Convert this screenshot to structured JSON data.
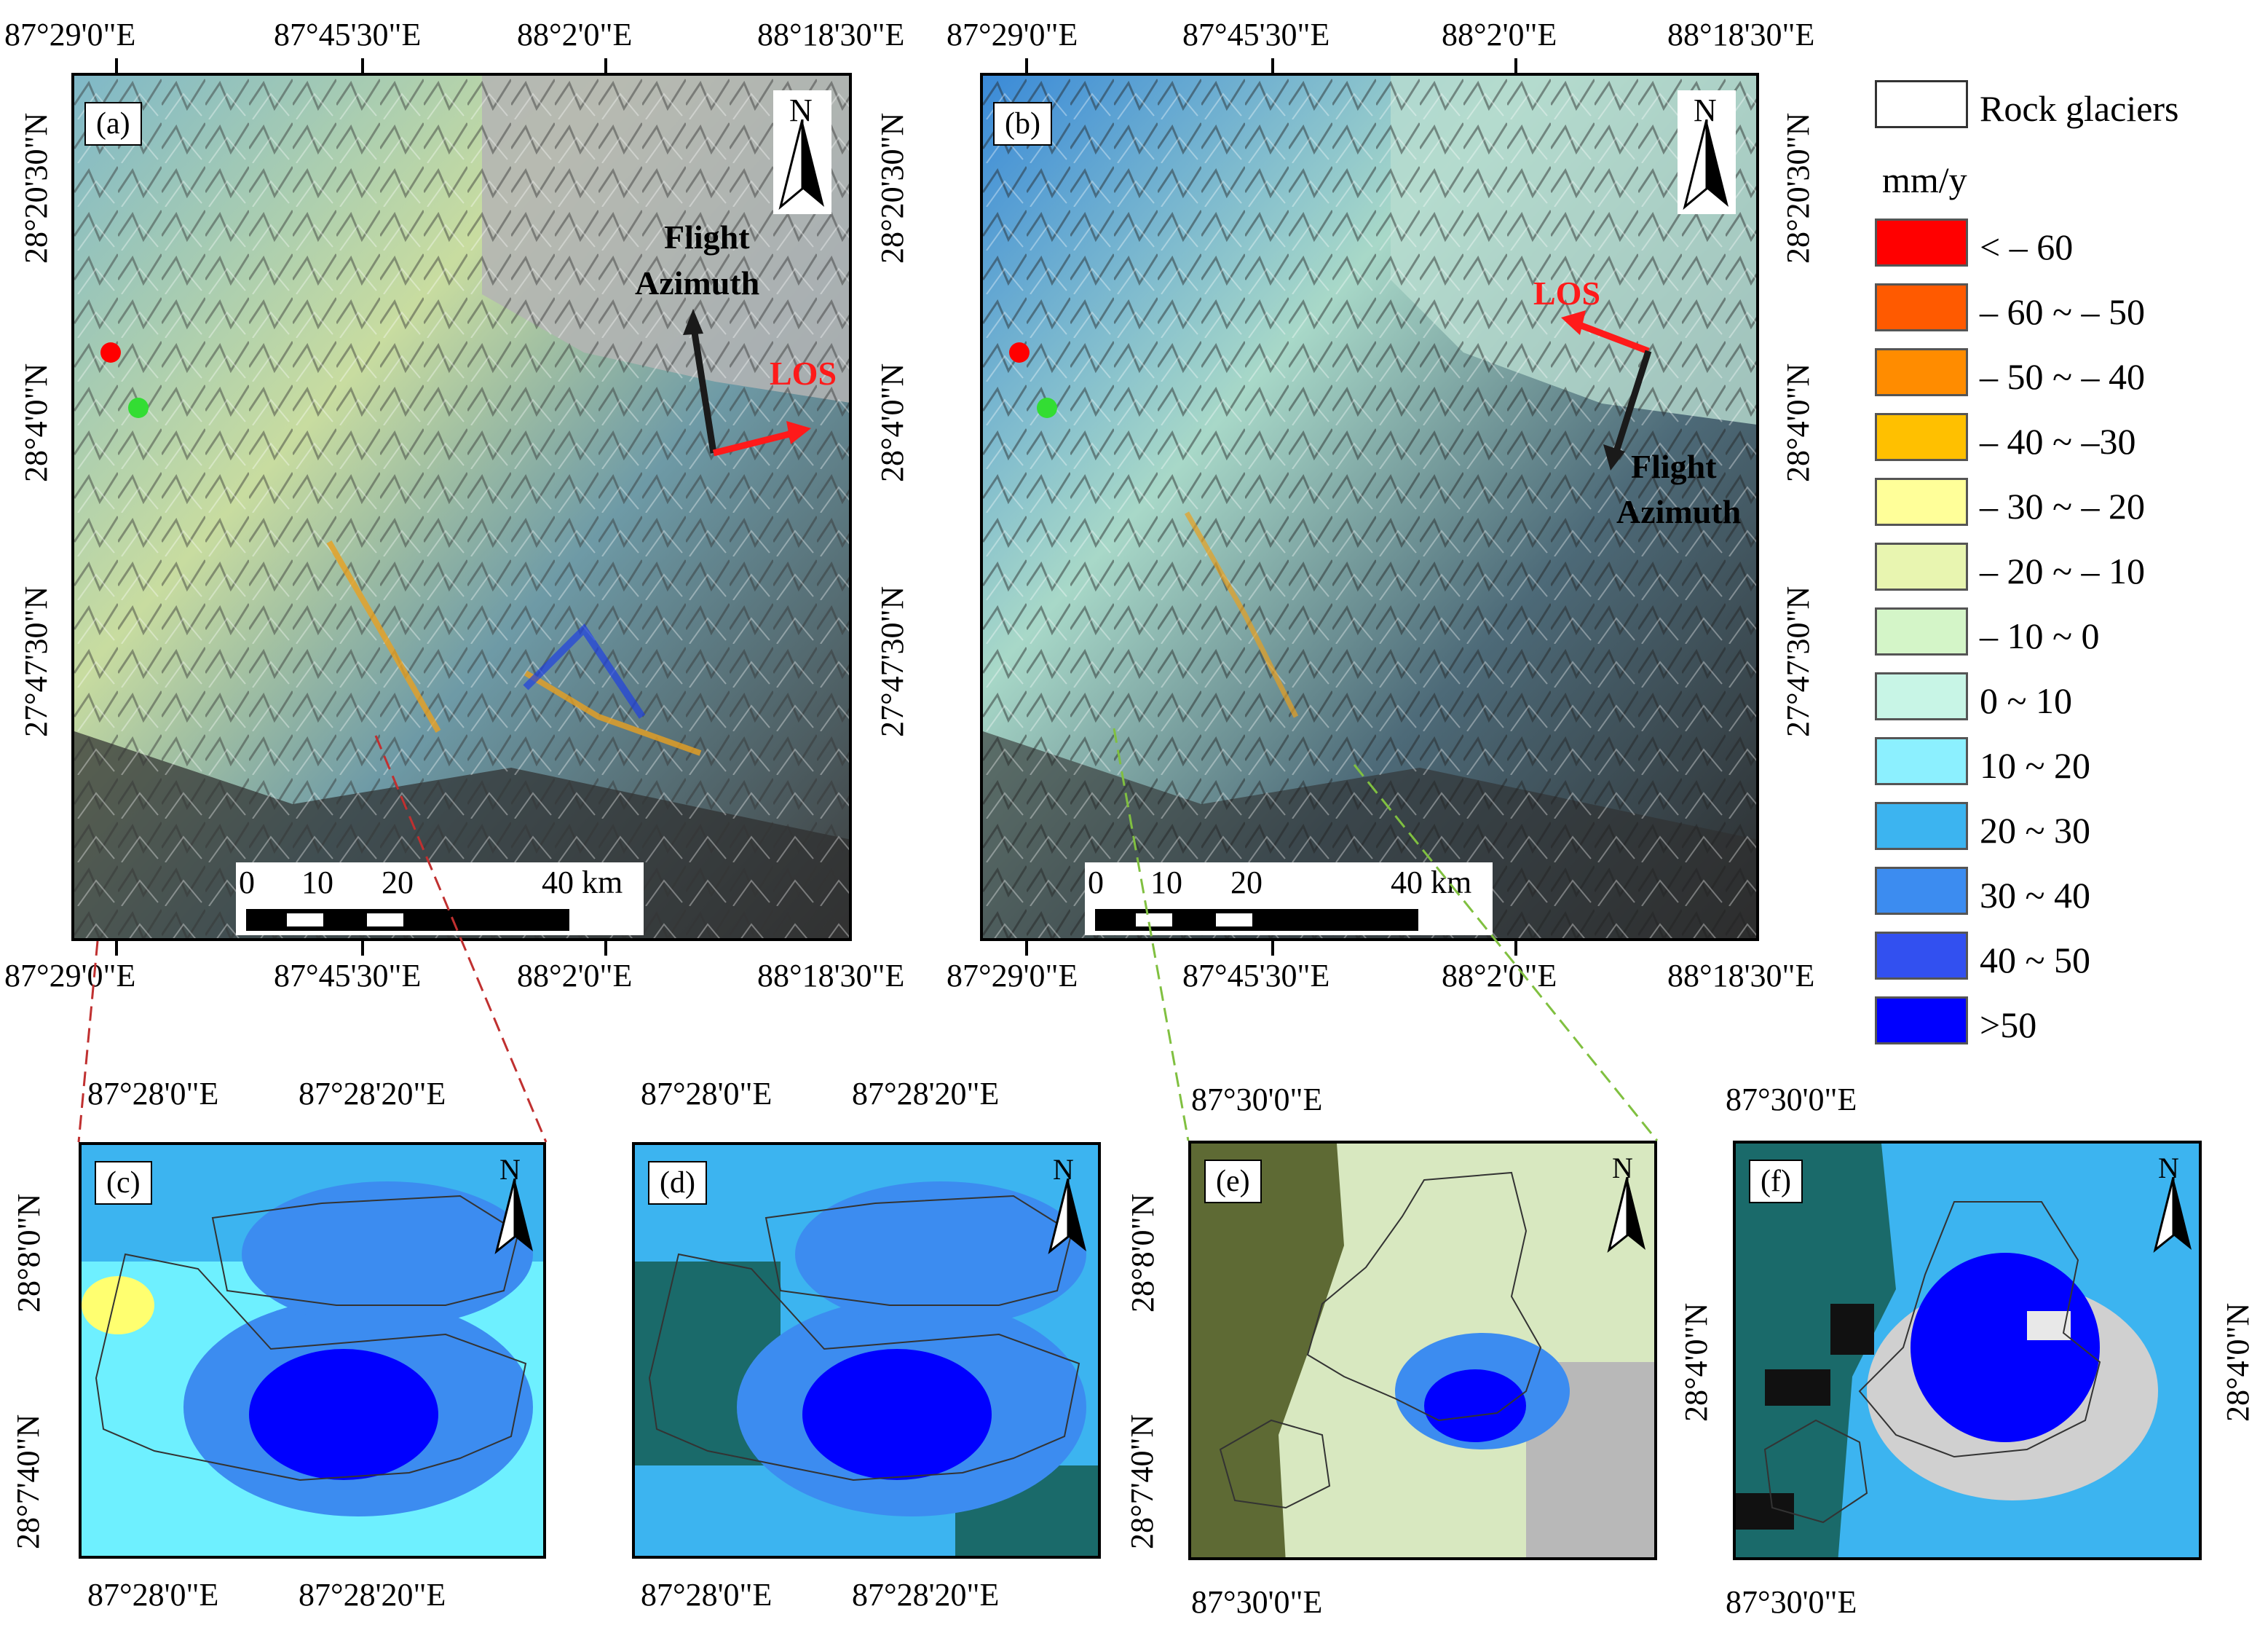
{
  "panels": {
    "a": {
      "label": "(a)"
    },
    "b": {
      "label": "(b)"
    },
    "c": {
      "label": "(c)"
    },
    "d": {
      "label": "(d)"
    },
    "e": {
      "label": "(e)"
    },
    "f": {
      "label": "(f)"
    }
  },
  "large_map_coords": {
    "top_x": [
      "87°29'0\"E",
      "87°45'30\"E",
      "88°2'0\"E",
      "88°18'30\"E"
    ],
    "bottom_x": [
      "87°29'0\"E",
      "87°45'30\"E",
      "88°2'0\"E",
      "88°18'30\"E"
    ],
    "y": [
      "28°20'30\"N",
      "28°4'0\"N",
      "27°47'30\"N"
    ]
  },
  "north_label": "N",
  "annotations": {
    "a_flight": "Flight",
    "a_azimuth": "Azimuth",
    "a_los": "LOS",
    "b_los": "LOS",
    "b_flight": "Flight",
    "b_azimuth": "Azimuth"
  },
  "scalebar": {
    "labels": [
      "0",
      "10",
      "20",
      "40 km"
    ]
  },
  "inset_cd": {
    "x": [
      "87°28'0\"E",
      "87°28'20\"E"
    ],
    "y": [
      "28°8'0\"N",
      "28°7'40\"N"
    ]
  },
  "inset_e": {
    "x": "87°30'0\"E",
    "y": "28°4'0\"N"
  },
  "inset_f": {
    "x": "87°30'0\"E",
    "y": "28°4'0\"N"
  },
  "legend": {
    "outline_label": "Rock glaciers",
    "unit": "mm/y",
    "classes": [
      {
        "label": "< – 60",
        "color": "#ff0000"
      },
      {
        "label": "– 60 ~ – 50",
        "color": "#ff5a00"
      },
      {
        "label": "– 50  ~ – 40",
        "color": "#ff8c00"
      },
      {
        "label": "– 40  ~ –30",
        "color": "#ffc000"
      },
      {
        "label": "– 30 ~ – 20",
        "color": "#ffff99"
      },
      {
        "label": "– 20  ~ – 10",
        "color": "#e8f5b0"
      },
      {
        "label": "– 10 ~ 0",
        "color": "#d4f5c8"
      },
      {
        "label": "0  ~ 10",
        "color": "#c8f5e6"
      },
      {
        "label": "10  ~ 20",
        "color": "#8cf0ff"
      },
      {
        "label": "20  ~ 30",
        "color": "#3cb4f0"
      },
      {
        "label": "30  ~ 40",
        "color": "#3c8cf0"
      },
      {
        "label": "40  ~ 50",
        "color": "#3250f0"
      },
      {
        "label": ">50",
        "color": "#0000ff"
      }
    ]
  },
  "map_symbols": {
    "red_point_color": "#ff0000",
    "green_point_color": "#33dd33",
    "arrow_black": "#1a1a1a",
    "arrow_red": "#ff1a1a"
  }
}
